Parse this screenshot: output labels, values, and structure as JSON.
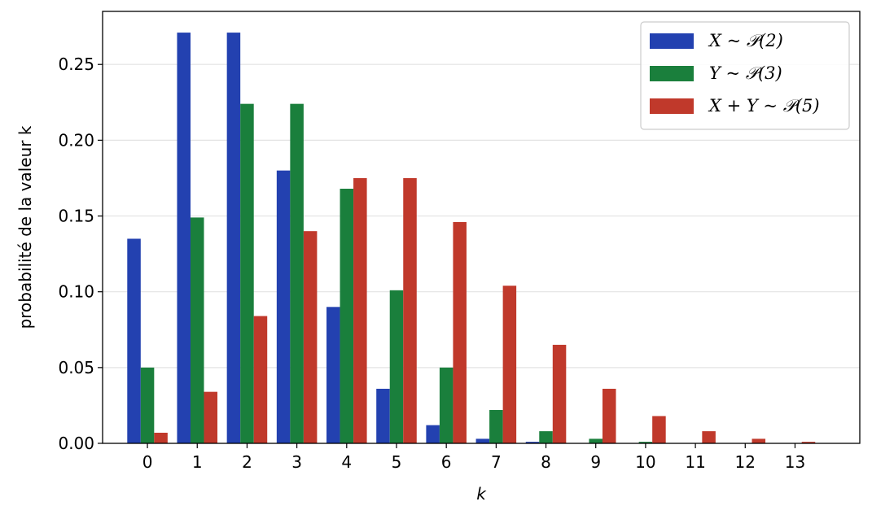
{
  "chart_data": {
    "type": "bar",
    "xlabel": "k",
    "ylabel": "probabilité de la valeur k",
    "ylim": [
      0,
      0.285
    ],
    "xlim": [
      -0.9,
      14.3
    ],
    "yticks": [
      "0.00",
      "0.05",
      "0.10",
      "0.15",
      "0.20",
      "0.25"
    ],
    "ytick_values": [
      0,
      0.05,
      0.1,
      0.15,
      0.2,
      0.25
    ],
    "grid": "horizontal",
    "legend_position": "top-right",
    "categories": [
      "0",
      "1",
      "2",
      "3",
      "4",
      "5",
      "6",
      "7",
      "8",
      "9",
      "10",
      "11",
      "12",
      "13"
    ],
    "series": [
      {
        "name": "X ~ 𝒫(2)",
        "color": "#2341b0",
        "values": [
          0.135,
          0.271,
          0.271,
          0.18,
          0.09,
          0.036,
          0.012,
          0.003,
          0.001,
          0.0002,
          0.0,
          0.0,
          0.0,
          0.0
        ]
      },
      {
        "name": "Y ~ 𝒫(3)",
        "color": "#1a7f3c",
        "values": [
          0.05,
          0.149,
          0.224,
          0.224,
          0.168,
          0.101,
          0.05,
          0.022,
          0.008,
          0.003,
          0.001,
          0.0002,
          0.0,
          0.0
        ]
      },
      {
        "name": "X + Y ~ 𝒫(5)",
        "color": "#c0392b",
        "values": [
          0.007,
          0.034,
          0.084,
          0.14,
          0.175,
          0.175,
          0.146,
          0.104,
          0.065,
          0.036,
          0.018,
          0.008,
          0.003,
          0.001
        ]
      }
    ]
  }
}
